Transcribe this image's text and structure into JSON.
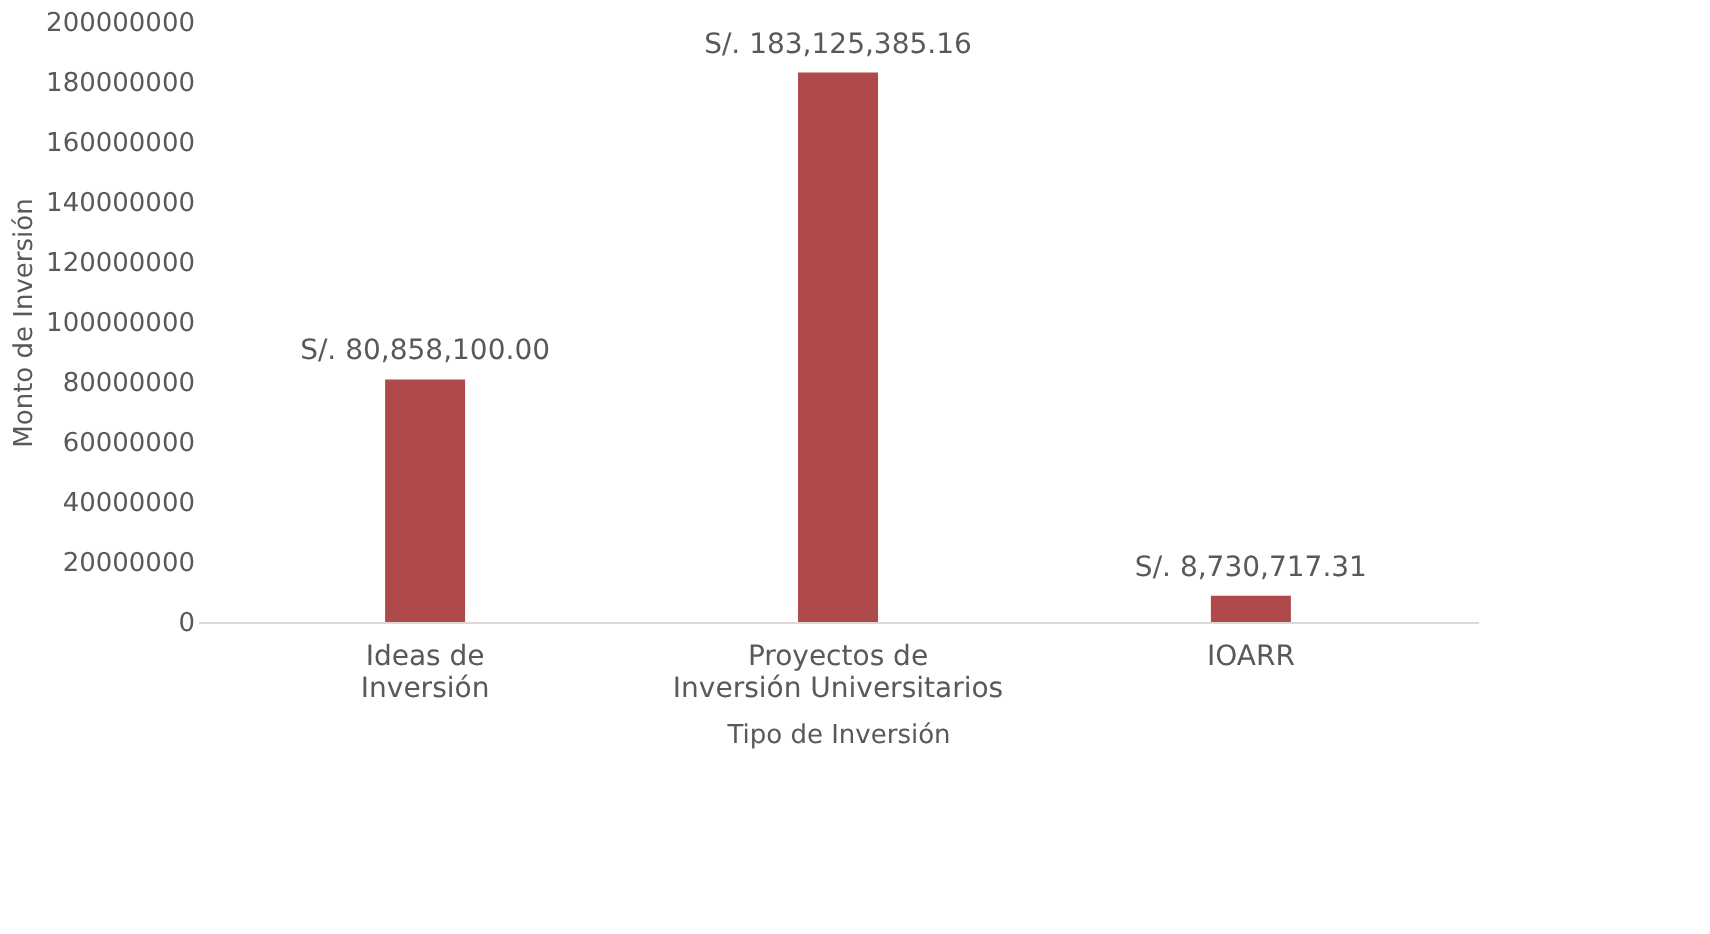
{
  "chart_data": {
    "type": "bar",
    "xlabel": "Tipo de Inversión",
    "ylabel": "Monto de Inversión",
    "categories": [
      "Ideas de Inversión",
      "Proyectos de Inversión Universitarios",
      "IOARR"
    ],
    "values": [
      80858100.0,
      183125385.16,
      8730717.31
    ],
    "value_labels": [
      "S/. 80,858,100.00",
      "S/. 183,125,385.16",
      "S/. 8,730,717.31"
    ],
    "color": "#b04a4a",
    "ylim": [
      0,
      200000000
    ],
    "yticks": [
      0,
      20000000,
      40000000,
      60000000,
      80000000,
      100000000,
      120000000,
      140000000,
      160000000,
      180000000,
      200000000
    ],
    "grid": false
  }
}
